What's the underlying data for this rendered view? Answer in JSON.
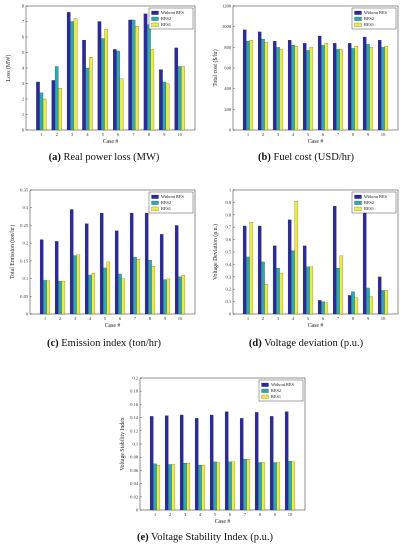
{
  "colors": {
    "without_res": "#2a2a9c",
    "res2": "#2fa9ae",
    "res1": "#eceb42"
  },
  "charts": [
    {
      "id": "a",
      "caption_letter": "(a)",
      "caption_text": " Real power loss (MW)",
      "ylabel": "Loss (MW)",
      "xlabel": "Case #",
      "legend": [
        "Without RES",
        "RES2",
        "RES1"
      ],
      "yticks": [
        "0",
        "1",
        "2",
        "3",
        "4",
        "5",
        "6",
        "7",
        "8"
      ],
      "ytick_values": [
        0,
        1,
        2,
        3,
        4,
        5,
        6,
        7,
        8
      ]
    },
    {
      "id": "b",
      "caption_letter": "(b)",
      "caption_text": " Fuel cost (USD/hr)",
      "ylabel": "Total cost ($/hr)",
      "xlabel": "Case #",
      "legend": [
        "Without RES",
        "RES2",
        "RES1"
      ],
      "yticks": [
        "0",
        "200",
        "400",
        "600",
        "800",
        "1000",
        "1200"
      ],
      "ytick_values": [
        0,
        200,
        400,
        600,
        800,
        1000,
        1200
      ]
    },
    {
      "id": "c",
      "caption_letter": "(c)",
      "caption_text": " Emission index (ton/hr)",
      "ylabel": "Total Emission (ton/hr)",
      "xlabel": "Case #",
      "legend": [
        "Without RES",
        "RES2",
        "RES1"
      ],
      "yticks": [
        "0",
        "0.05",
        "0.1",
        "0.15",
        "0.2",
        "0.25",
        "0.3",
        "0.35"
      ],
      "ytick_values": [
        0,
        0.05,
        0.1,
        0.15,
        0.2,
        0.25,
        0.3,
        0.35
      ]
    },
    {
      "id": "d",
      "caption_letter": "(d)",
      "caption_text": " Voltage deviation (p.u.)",
      "ylabel": "Voltage Deviation (p.u.)",
      "xlabel": "Case #",
      "legend": [
        "Without RES",
        "RES2",
        "RES1"
      ],
      "yticks": [
        "0",
        "0.1",
        "0.2",
        "0.3",
        "0.4",
        "0.5",
        "0.6",
        "0.7",
        "0.8",
        "0.9",
        "1"
      ],
      "ytick_values": [
        0,
        0.1,
        0.2,
        0.3,
        0.4,
        0.5,
        0.6,
        0.7,
        0.8,
        0.9,
        1.0
      ]
    },
    {
      "id": "e",
      "caption_letter": "(e)",
      "caption_text": " Voltage Stability Index (p.u.)",
      "ylabel": "Voltage Stability Index",
      "xlabel": "Case #",
      "legend": [
        "Without RES",
        "RES2",
        "RES1"
      ],
      "yticks": [
        "0",
        "0.02",
        "0.04",
        "0.06",
        "0.08",
        "0.1",
        "0.12",
        "0.14",
        "0.16",
        "0.18",
        "0.2"
      ],
      "ytick_values": [
        0,
        0.02,
        0.04,
        0.06,
        0.08,
        0.1,
        0.12,
        0.14,
        0.16,
        0.18,
        0.2
      ]
    }
  ],
  "chart_data": [
    {
      "type": "bar",
      "categories": [
        "1",
        "2",
        "3",
        "4",
        "5",
        "6",
        "7",
        "8",
        "9",
        "10"
      ],
      "ylim": [
        0,
        8
      ],
      "grid": false,
      "legend_position": "top-right",
      "series": [
        {
          "name": "Without RES",
          "values": [
            3.1,
            3.2,
            7.6,
            5.8,
            7.0,
            5.2,
            7.1,
            7.5,
            3.9,
            5.3
          ]
        },
        {
          "name": "RES2",
          "values": [
            2.4,
            4.1,
            7.0,
            4.0,
            5.9,
            5.1,
            7.1,
            6.8,
            3.1,
            4.1
          ]
        },
        {
          "name": "RES1",
          "values": [
            2.0,
            2.7,
            7.2,
            4.7,
            6.5,
            3.3,
            6.7,
            5.2,
            3.0,
            4.1
          ]
        }
      ]
    },
    {
      "type": "bar",
      "categories": [
        "1",
        "2",
        "3",
        "4",
        "5",
        "6",
        "7",
        "8",
        "9",
        "10"
      ],
      "ylim": [
        0,
        1200
      ],
      "grid": false,
      "legend_position": "top-right",
      "series": [
        {
          "name": "Without RES",
          "values": [
            970,
            950,
            860,
            870,
            840,
            910,
            840,
            840,
            900,
            870
          ]
        },
        {
          "name": "RES2",
          "values": [
            860,
            880,
            800,
            820,
            770,
            820,
            780,
            790,
            830,
            800
          ]
        },
        {
          "name": "RES1",
          "values": [
            870,
            850,
            780,
            810,
            800,
            840,
            780,
            810,
            800,
            810
          ]
        }
      ]
    },
    {
      "type": "bar",
      "categories": [
        "1",
        "2",
        "3",
        "4",
        "5",
        "6",
        "7",
        "8",
        "9",
        "10"
      ],
      "ylim": [
        0,
        0.35
      ],
      "grid": false,
      "legend_position": "top-right",
      "series": [
        {
          "name": "Without RES",
          "values": [
            0.21,
            0.205,
            0.295,
            0.255,
            0.285,
            0.235,
            0.285,
            0.285,
            0.225,
            0.25
          ]
        },
        {
          "name": "RES2",
          "values": [
            0.095,
            0.093,
            0.165,
            0.11,
            0.13,
            0.113,
            0.16,
            0.152,
            0.097,
            0.105
          ]
        },
        {
          "name": "RES1",
          "values": [
            0.094,
            0.093,
            0.167,
            0.115,
            0.147,
            0.1,
            0.155,
            0.135,
            0.099,
            0.109
          ]
        }
      ]
    },
    {
      "type": "bar",
      "categories": [
        "1",
        "2",
        "3",
        "4",
        "5",
        "6",
        "7",
        "8",
        "9",
        "10"
      ],
      "ylim": [
        0,
        1
      ],
      "grid": false,
      "legend_position": "top-right",
      "series": [
        {
          "name": "Without RES",
          "values": [
            0.71,
            0.71,
            0.55,
            0.76,
            0.55,
            0.11,
            0.87,
            0.15,
            0.94,
            0.3
          ]
        },
        {
          "name": "RES2",
          "values": [
            0.46,
            0.42,
            0.37,
            0.51,
            0.38,
            0.1,
            0.37,
            0.18,
            0.21,
            0.19
          ]
        },
        {
          "name": "RES1",
          "values": [
            0.74,
            0.24,
            0.33,
            0.91,
            0.38,
            0.09,
            0.47,
            0.13,
            0.14,
            0.19
          ]
        }
      ]
    },
    {
      "type": "bar",
      "categories": [
        "1",
        "2",
        "3",
        "4",
        "5",
        "6",
        "7",
        "8",
        "9",
        "10"
      ],
      "ylim": [
        0,
        0.2
      ],
      "grid": false,
      "legend_position": "top-right",
      "series": [
        {
          "name": "Without RES",
          "values": [
            0.142,
            0.143,
            0.144,
            0.139,
            0.144,
            0.149,
            0.139,
            0.148,
            0.142,
            0.149
          ]
        },
        {
          "name": "RES2",
          "values": [
            0.07,
            0.069,
            0.071,
            0.068,
            0.073,
            0.073,
            0.077,
            0.072,
            0.072,
            0.074
          ]
        },
        {
          "name": "RES1",
          "values": [
            0.068,
            0.069,
            0.071,
            0.068,
            0.072,
            0.073,
            0.077,
            0.072,
            0.072,
            0.073
          ]
        }
      ]
    }
  ]
}
